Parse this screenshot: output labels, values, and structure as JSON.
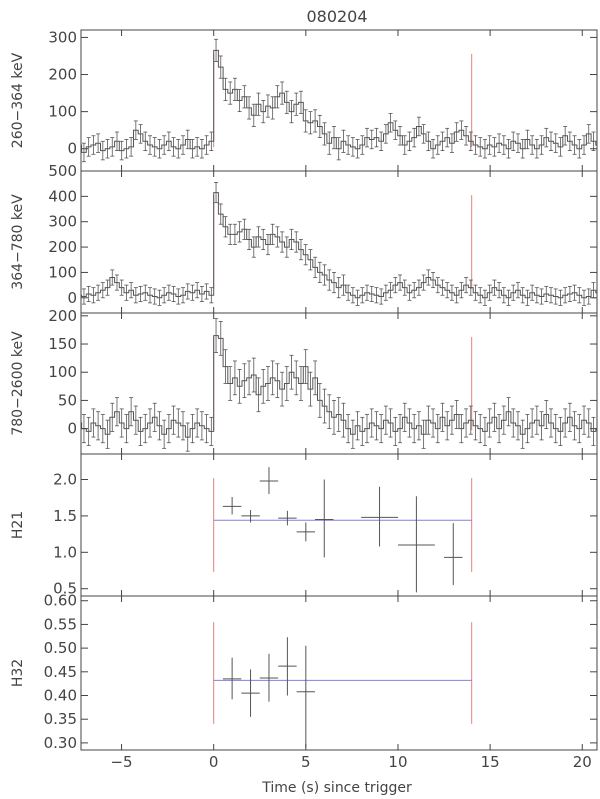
{
  "chart_data": {
    "type": "line",
    "title": "080204",
    "xlabel": "Time (s) since trigger",
    "xlim": [
      -7.2,
      20.8
    ],
    "x_ticks": [
      -5,
      0,
      5,
      10,
      15,
      20
    ],
    "x_tick_labels": [
      "−5",
      "0",
      "5",
      "10",
      "15",
      "20"
    ],
    "interval_markers": [
      0.0,
      14.0
    ],
    "colors": {
      "axes": "#444444",
      "data": "#555555",
      "marker": "#e08080",
      "mean": "#8080e0"
    },
    "panels": [
      {
        "ylabel": "260−364 keV",
        "ylim": [
          -60,
          320
        ],
        "y_ticks": [
          0,
          100,
          200,
          300
        ],
        "bin_width": 0.256,
        "values": [
          5,
          -10,
          20,
          10,
          -5,
          0,
          15,
          10,
          5,
          20,
          15,
          10,
          0,
          10,
          -10,
          5,
          10,
          15,
          -5,
          0,
          5,
          20,
          -5,
          0,
          5,
          50,
          40,
          20,
          10,
          5,
          0,
          10,
          20,
          5,
          0,
          10,
          25,
          0,
          5,
          0,
          10,
          20,
          265,
          220,
          160,
          150,
          160,
          130,
          140,
          110,
          90,
          120,
          100,
          115,
          110,
          140,
          150,
          125,
          100,
          120,
          125,
          75,
          70,
          75,
          60,
          40,
          15,
          30,
          0,
          20,
          10,
          5,
          0,
          10,
          30,
          25,
          30,
          20,
          40,
          70,
          50,
          35,
          10,
          20,
          30,
          60,
          40,
          20,
          0,
          10,
          20,
          30,
          15,
          45,
          50,
          35,
          20,
          10,
          5,
          0,
          10,
          5,
          15,
          10,
          0,
          20,
          15,
          0,
          25,
          10,
          0,
          10,
          30,
          20,
          15,
          5,
          35,
          20,
          10,
          0,
          10,
          40,
          20,
          10,
          35,
          15,
          30,
          10,
          -5,
          20,
          10,
          25,
          15,
          20,
          35,
          10,
          5,
          20,
          20,
          0,
          10,
          5,
          0,
          10
        ],
        "errors": [
          25,
          25,
          25,
          25,
          25,
          25,
          25,
          25,
          25,
          25,
          25,
          25,
          25,
          25,
          25,
          25,
          25,
          25,
          25,
          25,
          25,
          25,
          25,
          25,
          25,
          25,
          25,
          25,
          25,
          25,
          25,
          25,
          25,
          25,
          25,
          25,
          25,
          25,
          25,
          25,
          25,
          25,
          30,
          30,
          30,
          30,
          30,
          30,
          30,
          30,
          30,
          30,
          30,
          30,
          30,
          30,
          30,
          30,
          30,
          30,
          30,
          30,
          30,
          30,
          30,
          30,
          30,
          30,
          30,
          30,
          25,
          25,
          25,
          25,
          25,
          25,
          25,
          25,
          25,
          25,
          25,
          25,
          25,
          25,
          25,
          25,
          25,
          25,
          25,
          25,
          25,
          25,
          25,
          25,
          25,
          25,
          25,
          25,
          25,
          25,
          25,
          25,
          25,
          25,
          25,
          25,
          25,
          25,
          25,
          25,
          25,
          25,
          25,
          25,
          25,
          25,
          25,
          25,
          25,
          25,
          25,
          25,
          25,
          25,
          25,
          25,
          25,
          25,
          25,
          25,
          25,
          25,
          25,
          25,
          25,
          25,
          25,
          25,
          25,
          25,
          25,
          25,
          25,
          25
        ]
      },
      {
        "ylabel": "364−780 keV",
        "ylim": [
          -60,
          500
        ],
        "y_ticks": [
          0,
          100,
          200,
          300,
          400,
          500
        ],
        "bin_width": 0.256,
        "values": [
          0,
          10,
          20,
          15,
          30,
          25,
          20,
          30,
          25,
          20,
          15,
          20,
          0,
          10,
          5,
          15,
          10,
          20,
          30,
          40,
          80,
          60,
          40,
          20,
          30,
          10,
          15,
          20,
          10,
          5,
          0,
          10,
          20,
          15,
          5,
          10,
          25,
          20,
          30,
          15,
          25,
          10,
          415,
          330,
          280,
          250,
          250,
          260,
          270,
          230,
          200,
          240,
          230,
          210,
          250,
          240,
          220,
          200,
          230,
          220,
          190,
          170,
          150,
          120,
          100,
          90,
          70,
          60,
          40,
          50,
          20,
          10,
          0,
          10,
          20,
          15,
          10,
          5,
          20,
          30,
          50,
          60,
          40,
          20,
          30,
          40,
          60,
          80,
          70,
          50,
          40,
          30,
          20,
          10,
          30,
          50,
          40,
          20,
          10,
          0,
          20,
          40,
          30,
          10,
          0,
          20,
          30,
          10,
          0,
          20,
          10,
          5,
          15,
          10,
          5,
          0,
          10,
          15,
          20,
          10,
          0,
          5,
          30,
          20,
          10,
          0,
          10,
          20,
          15,
          5,
          10,
          30,
          20,
          10,
          20,
          15,
          10,
          20,
          0,
          10,
          5,
          15,
          10,
          5
        ],
        "errors": [
          30,
          30,
          30,
          30,
          30,
          30,
          30,
          30,
          30,
          30,
          30,
          30,
          30,
          30,
          30,
          30,
          30,
          30,
          30,
          30,
          30,
          30,
          30,
          30,
          30,
          30,
          30,
          30,
          30,
          30,
          30,
          30,
          30,
          30,
          30,
          30,
          30,
          30,
          30,
          30,
          30,
          30,
          40,
          40,
          40,
          40,
          40,
          40,
          40,
          40,
          40,
          40,
          40,
          40,
          40,
          40,
          40,
          40,
          40,
          40,
          40,
          40,
          40,
          40,
          40,
          40,
          40,
          40,
          40,
          40,
          30,
          30,
          30,
          30,
          30,
          30,
          30,
          30,
          30,
          30,
          30,
          30,
          30,
          30,
          30,
          30,
          30,
          30,
          30,
          30,
          30,
          30,
          30,
          30,
          30,
          30,
          30,
          30,
          30,
          30,
          30,
          30,
          30,
          30,
          30,
          30,
          30,
          30,
          30,
          30,
          30,
          30,
          30,
          30,
          30,
          30,
          30,
          30,
          30,
          30,
          30,
          30,
          30,
          30,
          30,
          30,
          30,
          30,
          30,
          30,
          30,
          30,
          30,
          30,
          30,
          30,
          30,
          30,
          30,
          30,
          30,
          30,
          30,
          30
        ]
      },
      {
        "ylabel": "780−2600 keV",
        "ylim": [
          -45,
          205
        ],
        "y_ticks": [
          0,
          50,
          100,
          150,
          200
        ],
        "bin_width": 0.256,
        "values": [
          0,
          10,
          -5,
          15,
          30,
          5,
          -10,
          0,
          5,
          10,
          0,
          -5,
          15,
          10,
          0,
          -5,
          10,
          5,
          0,
          -10,
          20,
          30,
          10,
          0,
          30,
          15,
          -5,
          0,
          10,
          20,
          5,
          -10,
          0,
          15,
          10,
          5,
          -15,
          0,
          10,
          5,
          0,
          -5,
          165,
          160,
          110,
          80,
          90,
          75,
          85,
          90,
          95,
          60,
          75,
          80,
          90,
          85,
          70,
          80,
          100,
          90,
          80,
          110,
          70,
          90,
          50,
          40,
          30,
          20,
          25,
          15,
          0,
          -10,
          5,
          -5,
          0,
          10,
          5,
          0,
          15,
          10,
          -5,
          0,
          20,
          10,
          0,
          5,
          -10,
          15,
          10,
          0,
          20,
          5,
          15,
          25,
          0,
          10,
          15,
          5,
          0,
          -5,
          10,
          20,
          0,
          15,
          30,
          10,
          5,
          -10,
          0,
          10,
          15,
          5,
          25,
          10,
          0,
          -5,
          10,
          20,
          5,
          0,
          15,
          10,
          -5,
          0,
          10,
          5,
          15,
          20,
          0,
          10,
          5,
          -10,
          10,
          0,
          20,
          15,
          5,
          0,
          10,
          20,
          15,
          25,
          20,
          30
        ],
        "errors": [
          25,
          25,
          25,
          25,
          25,
          25,
          25,
          25,
          25,
          25,
          25,
          25,
          25,
          25,
          25,
          25,
          25,
          25,
          25,
          25,
          25,
          25,
          25,
          25,
          25,
          25,
          25,
          25,
          25,
          25,
          25,
          25,
          25,
          25,
          25,
          25,
          25,
          25,
          25,
          25,
          25,
          25,
          30,
          30,
          30,
          30,
          30,
          30,
          30,
          30,
          30,
          30,
          30,
          30,
          30,
          30,
          30,
          30,
          30,
          30,
          30,
          30,
          30,
          30,
          30,
          30,
          30,
          30,
          30,
          30,
          25,
          25,
          25,
          25,
          25,
          25,
          25,
          25,
          25,
          25,
          25,
          25,
          25,
          25,
          25,
          25,
          25,
          25,
          25,
          25,
          25,
          25,
          25,
          25,
          25,
          25,
          25,
          25,
          25,
          25,
          25,
          25,
          25,
          25,
          25,
          25,
          25,
          25,
          25,
          25,
          25,
          25,
          25,
          25,
          25,
          25,
          25,
          25,
          25,
          25,
          25,
          25,
          25,
          25,
          25,
          25,
          25,
          25,
          25,
          25,
          25,
          25,
          25,
          25,
          25,
          25,
          25,
          25,
          25,
          25,
          25,
          25,
          25,
          25
        ]
      },
      {
        "ylabel": "H21",
        "ylim": [
          0.4,
          2.35
        ],
        "y_ticks": [
          0.5,
          1.0,
          1.5,
          2.0
        ],
        "y_tick_labels": [
          "0.5",
          "1.0",
          "1.5",
          "2.0"
        ],
        "mean": 1.44,
        "points": [
          {
            "x": 1.0,
            "x_lo": 0.5,
            "x_hi": 1.5,
            "y": 1.63,
            "y_lo": 1.52,
            "y_hi": 1.76
          },
          {
            "x": 2.0,
            "x_lo": 1.5,
            "x_hi": 2.5,
            "y": 1.5,
            "y_lo": 1.41,
            "y_hi": 1.58
          },
          {
            "x": 3.0,
            "x_lo": 2.5,
            "x_hi": 3.5,
            "y": 1.98,
            "y_lo": 1.8,
            "y_hi": 2.17
          },
          {
            "x": 4.0,
            "x_lo": 3.5,
            "x_hi": 4.5,
            "y": 1.47,
            "y_lo": 1.37,
            "y_hi": 1.57
          },
          {
            "x": 5.0,
            "x_lo": 4.5,
            "x_hi": 5.5,
            "y": 1.28,
            "y_lo": 1.15,
            "y_hi": 1.41
          },
          {
            "x": 6.0,
            "x_lo": 5.5,
            "x_hi": 6.5,
            "y": 1.45,
            "y_lo": 0.93,
            "y_hi": 2.0
          },
          {
            "x": 9.0,
            "x_lo": 8.0,
            "x_hi": 10.0,
            "y": 1.48,
            "y_lo": 1.08,
            "y_hi": 1.9
          },
          {
            "x": 11.0,
            "x_lo": 10.0,
            "x_hi": 12.0,
            "y": 1.1,
            "y_lo": 0.45,
            "y_hi": 1.77
          },
          {
            "x": 13.0,
            "x_lo": 12.5,
            "x_hi": 13.5,
            "y": 0.93,
            "y_lo": 0.55,
            "y_hi": 1.4
          }
        ]
      },
      {
        "ylabel": "H32",
        "ylim": [
          0.285,
          0.61
        ],
        "y_ticks": [
          0.3,
          0.35,
          0.4,
          0.45,
          0.5,
          0.55,
          0.6
        ],
        "y_tick_labels": [
          "0.30",
          "0.35",
          "0.40",
          "0.45",
          "0.50",
          "0.55",
          "0.60"
        ],
        "mean": 0.432,
        "points": [
          {
            "x": 1.0,
            "x_lo": 0.5,
            "x_hi": 1.5,
            "y": 0.435,
            "y_lo": 0.392,
            "y_hi": 0.48
          },
          {
            "x": 2.0,
            "x_lo": 1.5,
            "x_hi": 2.5,
            "y": 0.405,
            "y_lo": 0.355,
            "y_hi": 0.455
          },
          {
            "x": 3.0,
            "x_lo": 2.5,
            "x_hi": 3.5,
            "y": 0.437,
            "y_lo": 0.387,
            "y_hi": 0.488
          },
          {
            "x": 4.0,
            "x_lo": 3.5,
            "x_hi": 4.5,
            "y": 0.462,
            "y_lo": 0.4,
            "y_hi": 0.523
          },
          {
            "x": 5.0,
            "x_lo": 4.5,
            "x_hi": 5.5,
            "y": 0.408,
            "y_lo": 0.29,
            "y_hi": 0.505
          }
        ]
      }
    ]
  }
}
